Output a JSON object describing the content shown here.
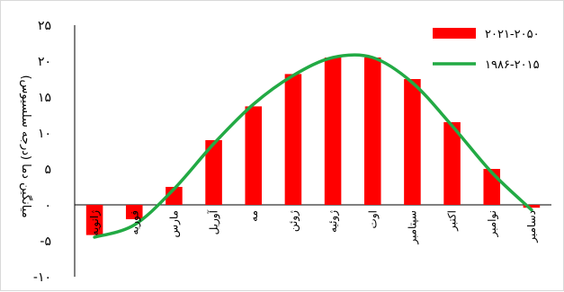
{
  "chart_data": {
    "type": "bar+line",
    "ylabel": "میانگین دما (درجه سلسیوس)",
    "ylim": [
      -10,
      25
    ],
    "yticks": [
      {
        "value": 25,
        "label": "۲۵"
      },
      {
        "value": 20,
        "label": "۲۰"
      },
      {
        "value": 15,
        "label": "۱۵"
      },
      {
        "value": 10,
        "label": "۱۰"
      },
      {
        "value": 5,
        "label": "۵"
      },
      {
        "value": 0,
        "label": "۰"
      },
      {
        "value": -5,
        "label": "-۵"
      },
      {
        "value": -10,
        "label": "-۱۰"
      }
    ],
    "categories": [
      "ژانویه",
      "فوریه",
      "مارس",
      "آوریل",
      "مه",
      "ژوئن",
      "ژوئیه",
      "اوت",
      "سپتامبر",
      "اکتبر",
      "نوامبر",
      "دسامبر"
    ],
    "series": [
      {
        "name": "۲۰۲۱-۲۰۵۰",
        "kind": "bar",
        "color": "#ff0000",
        "values": [
          -4.2,
          -2.0,
          2.5,
          9.0,
          13.7,
          18.2,
          20.5,
          20.5,
          17.5,
          11.5,
          5.0,
          -0.4
        ]
      },
      {
        "name": "۱۹۸۶-۲۰۱۵",
        "kind": "line",
        "color": "#22aa44",
        "values": [
          -4.5,
          -2.8,
          2.2,
          8.5,
          14.0,
          18.0,
          20.5,
          20.5,
          17.0,
          11.0,
          4.5,
          -0.7
        ]
      }
    ],
    "legend": "top-right",
    "grid": false
  }
}
